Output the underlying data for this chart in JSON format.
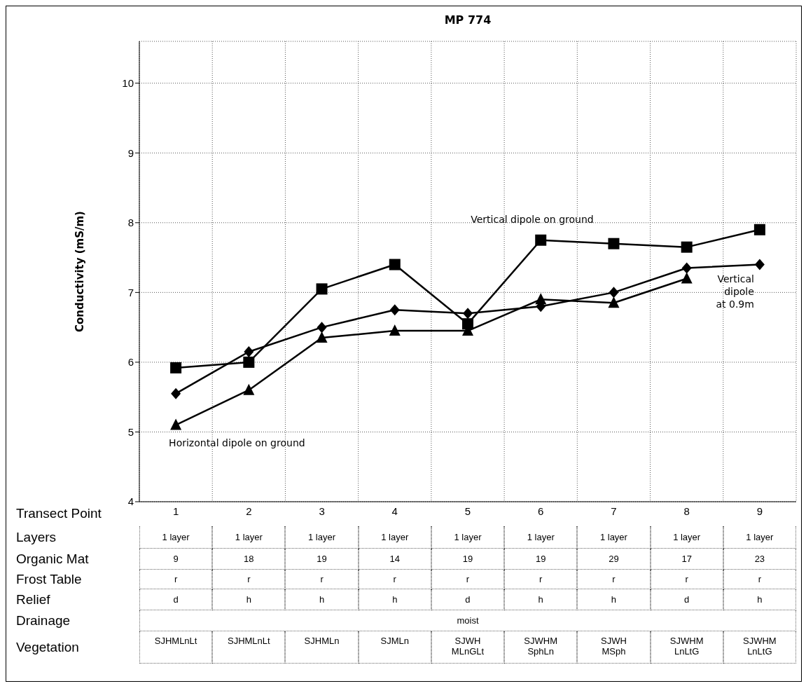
{
  "chart_data": {
    "type": "line",
    "title": "MP 774",
    "ylabel": "Conductivity (mS/m)",
    "categories": [
      "1",
      "2",
      "3",
      "4",
      "5",
      "6",
      "7",
      "8",
      "9"
    ],
    "series": [
      {
        "name": "Vertical dipole on ground",
        "color": "#000000",
        "marker": "square",
        "values": [
          5.92,
          6.0,
          7.05,
          7.4,
          6.55,
          7.75,
          7.7,
          7.65,
          7.9
        ]
      },
      {
        "name": "Vertical dipole at 0.9m",
        "color": "#000000",
        "marker": "diamond",
        "values": [
          5.55,
          6.15,
          6.5,
          6.75,
          6.7,
          6.8,
          7.0,
          7.35,
          7.4
        ]
      },
      {
        "name": "Horizontal dipole on ground",
        "color": "#000000",
        "marker": "triangle",
        "values": [
          5.1,
          5.6,
          6.35,
          6.45,
          6.45,
          6.9,
          6.85,
          7.2,
          null
        ]
      }
    ],
    "ylim": [
      4,
      10.6
    ],
    "yticks": [
      4,
      5,
      6,
      7,
      8,
      9,
      10
    ],
    "grid": true,
    "legend": false,
    "line_style": "solid",
    "annotations": [
      "Transect Point",
      "Layers",
      "1 layer",
      "1 layer",
      "1 layer",
      "1 layer",
      "1 layer",
      "1 layer",
      "1 layer",
      "1 layer",
      "1 layer",
      "Organic Mat",
      "9",
      "18",
      "19",
      "14",
      "19",
      "19",
      "29",
      "17",
      "23",
      "Frost  Table",
      "r",
      "r",
      "r",
      "r",
      "r",
      "r",
      "r",
      "r",
      "r",
      "Relief",
      "d",
      "h",
      "h",
      "h",
      "d",
      "h",
      "h",
      "d",
      "h",
      "Drainage",
      "moist",
      "Vegetation",
      "SJHMLnLt",
      "SJHMLnLt",
      "SJHMLn",
      "SJMLn",
      "SJWH MLnGLt",
      "SJWHM SphLn",
      "SJWH MSph",
      "SJWHM LnLtG",
      "SJWHM LnLtG"
    ]
  }
}
